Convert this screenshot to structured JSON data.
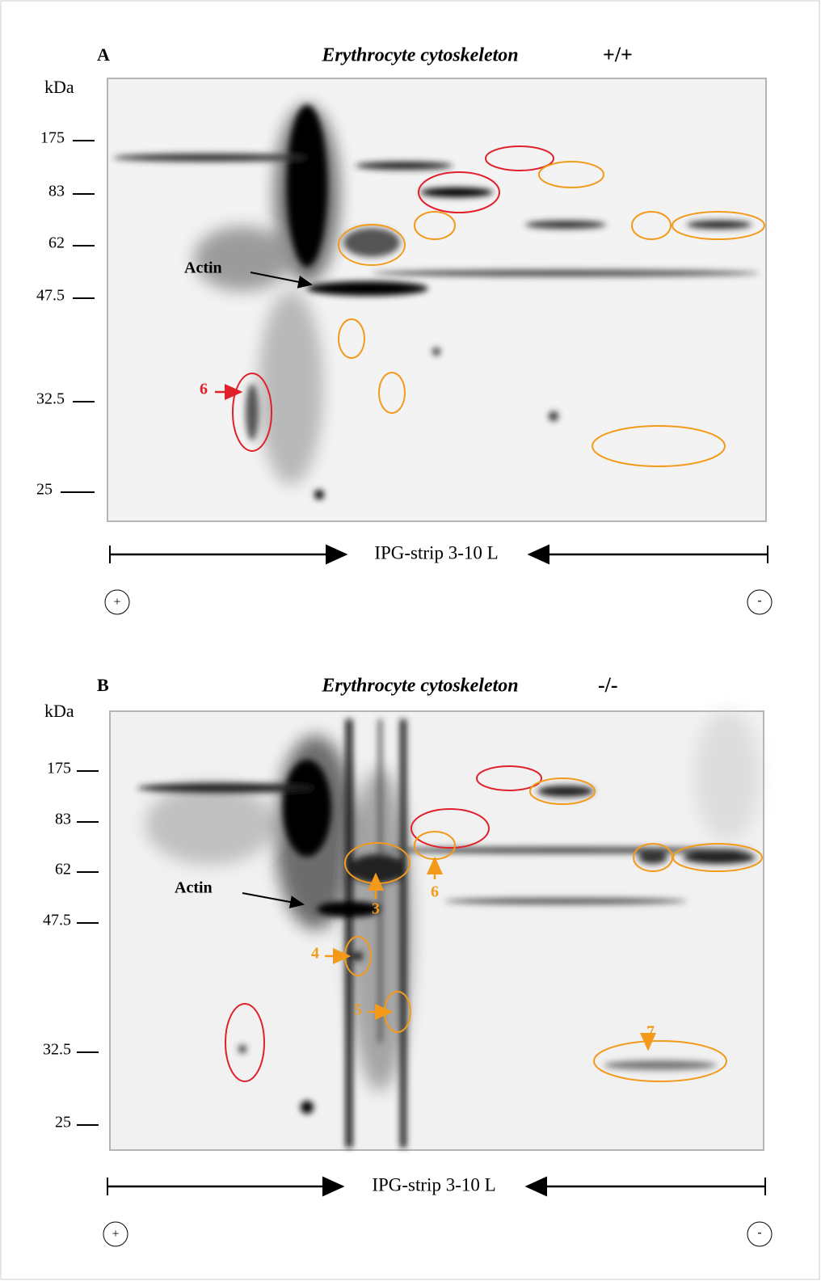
{
  "panels": [
    {
      "label": "A",
      "title": "Erythrocyte cytoskeleton",
      "genotype": "+/+",
      "axis_unit": "kDa",
      "markers": [
        "175",
        "83",
        "62",
        "47.5",
        "32.5",
        "25"
      ],
      "actin_label": "Actin",
      "spot_labels": [
        "6"
      ],
      "strip_label": "IPG-strip 3-10 L",
      "anode": "+",
      "cathode": "-"
    },
    {
      "label": "B",
      "title": "Erythrocyte cytoskeleton",
      "genotype": "-/-",
      "axis_unit": "kDa",
      "markers": [
        "175",
        "83",
        "62",
        "47.5",
        "32.5",
        "25"
      ],
      "actin_label": "Actin",
      "spot_labels": [
        "3",
        "4",
        "5",
        "6",
        "7"
      ],
      "strip_label": "IPG-strip 3-10 L",
      "anode": "+",
      "cathode": "-"
    }
  ]
}
